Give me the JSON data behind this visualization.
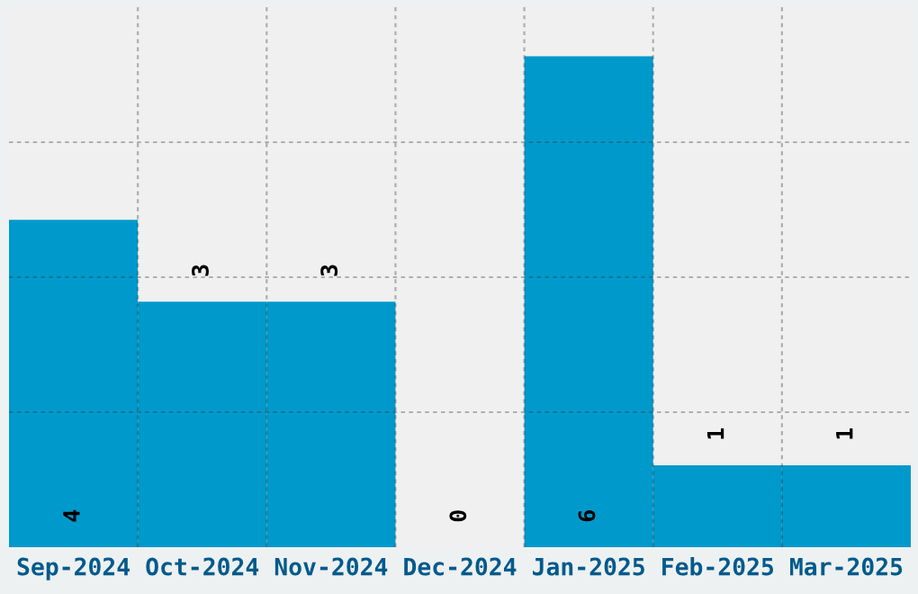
{
  "chart_data": {
    "type": "bar",
    "categories": [
      "Sep-2024",
      "Oct-2024",
      "Nov-2024",
      "Dec-2024",
      "Jan-2025",
      "Feb-2025",
      "Mar-2025"
    ],
    "values": [
      4,
      3,
      3,
      0,
      6,
      1,
      1
    ],
    "color": "#0099cc",
    "data_labels": true,
    "grid": true
  }
}
